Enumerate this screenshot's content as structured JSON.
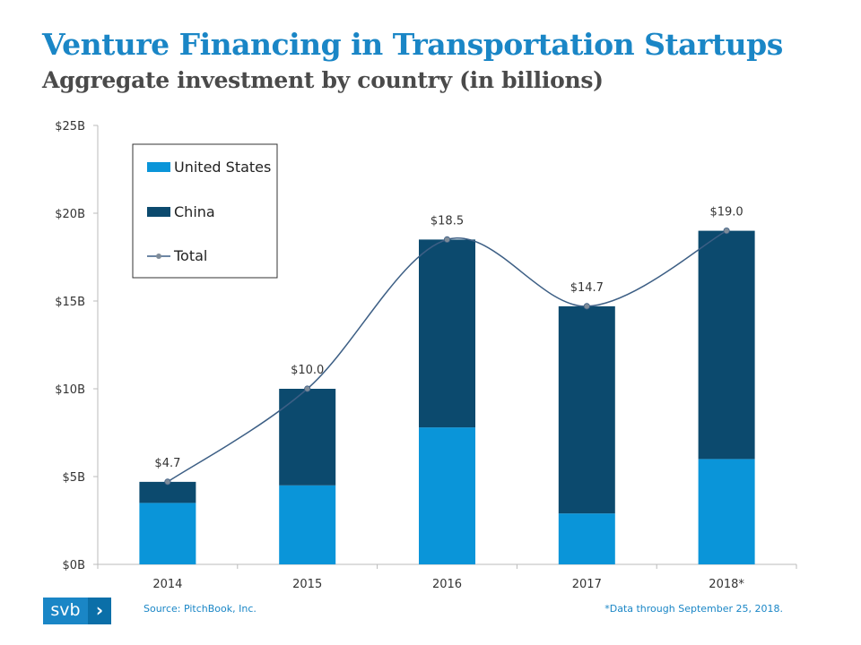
{
  "title": "Venture Financing in Transportation Startups",
  "subtitle": "Aggregate investment by country (in billions)",
  "source": "Source: PitchBook, Inc.",
  "footnote": "*Data through September 25, 2018.",
  "logo": {
    "text": "svb",
    "icon": "chevron-right-icon"
  },
  "colors": {
    "title": "#1a86c6",
    "subtitle": "#4a4a4a",
    "united_states": "#0a95d9",
    "china": "#0c4a6e",
    "total_line": "#3d5f85",
    "total_marker": "#7f8c99",
    "axis": "#bbbbbb"
  },
  "chart_data": {
    "type": "bar",
    "stacked": true,
    "categories": [
      "2014",
      "2015",
      "2016",
      "2017",
      "2018*"
    ],
    "series": [
      {
        "name": "United States",
        "values": [
          3.5,
          4.5,
          7.8,
          2.9,
          6.0
        ]
      },
      {
        "name": "China",
        "values": [
          1.2,
          5.5,
          10.7,
          11.8,
          13.0
        ]
      }
    ],
    "total": {
      "name": "Total",
      "type": "line",
      "smooth": true,
      "values": [
        4.7,
        10.0,
        18.5,
        14.7,
        19.0
      ]
    },
    "data_labels": [
      "$4.7",
      "$10.0",
      "$18.5",
      "$14.7",
      "$19.0"
    ],
    "ylim": [
      0,
      25
    ],
    "yticks": [
      0,
      5,
      10,
      15,
      20,
      25
    ],
    "ytick_labels": [
      "$0B",
      "$5B",
      "$10B",
      "$15B",
      "$20B",
      "$25B"
    ],
    "xlabel": "",
    "ylabel": "",
    "grid": false,
    "legend": {
      "position": "top-left",
      "entries": [
        "United States",
        "China",
        "Total"
      ]
    }
  }
}
